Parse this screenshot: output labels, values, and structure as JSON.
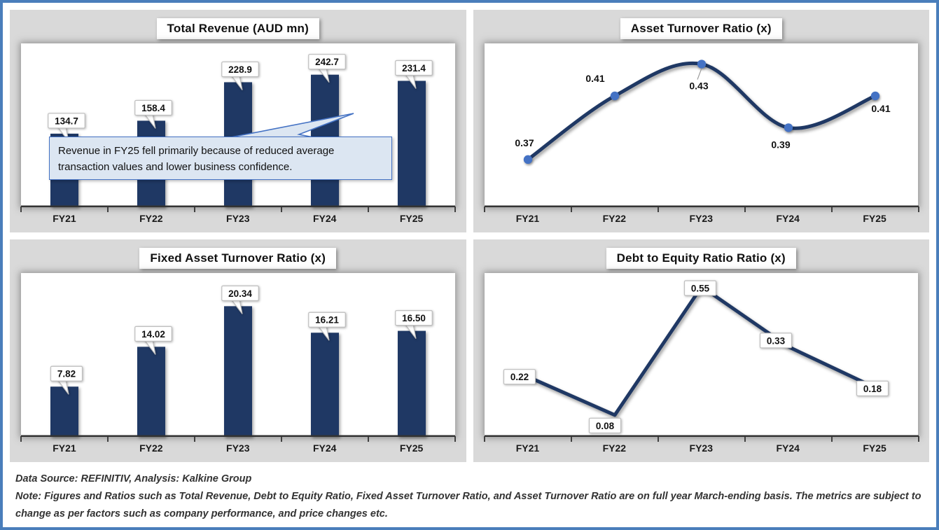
{
  "style": {
    "frame_border": "#4A7EBB",
    "panel_bg": "#D9D9D9",
    "bar_color": "#1F3864",
    "line_color": "#1F3864",
    "marker_color": "#4472C4",
    "axis_color": "#404040",
    "callout_fill": "#DCE6F2",
    "callout_border": "#4472C4",
    "label_box_border": "#BFBFBF"
  },
  "chart_data": [
    {
      "id": "total-revenue",
      "type": "bar",
      "title": "Total Revenue (AUD mn)",
      "categories": [
        "FY21",
        "FY22",
        "FY23",
        "FY24",
        "FY25"
      ],
      "values": [
        134.7,
        158.4,
        228.9,
        242.7,
        231.4
      ],
      "labels": [
        "134.7",
        "158.4",
        "228.9",
        "242.7",
        "231.4"
      ],
      "ylim": [
        0,
        300
      ],
      "grid": false,
      "legend": "none",
      "label_style": "callout",
      "annotation": {
        "text": "Revenue in FY25 fell primarily because of reduced average transaction values and lower business confidence.",
        "points_to": "FY25"
      }
    },
    {
      "id": "asset-turnover",
      "type": "line",
      "smooth": true,
      "markers": true,
      "title": "Asset Turnover Ratio (x)",
      "categories": [
        "FY21",
        "FY22",
        "FY23",
        "FY24",
        "FY25"
      ],
      "values": [
        0.37,
        0.41,
        0.43,
        0.39,
        0.41
      ],
      "labels": [
        "0.37",
        "0.41",
        "0.43",
        "0.39",
        "0.41"
      ],
      "ylim": [
        0.34,
        0.443
      ],
      "grid": false,
      "legend": "none",
      "label_style": "plain"
    },
    {
      "id": "fixed-asset-turnover",
      "type": "bar",
      "title": "Fixed Asset Turnover Ratio (x)",
      "categories": [
        "FY21",
        "FY22",
        "FY23",
        "FY24",
        "FY25"
      ],
      "values": [
        7.82,
        14.02,
        20.34,
        16.21,
        16.5
      ],
      "labels": [
        "7.82",
        "14.02",
        "20.34",
        "16.21",
        "16.50"
      ],
      "ylim": [
        0,
        25.5
      ],
      "grid": false,
      "legend": "none",
      "label_style": "callout"
    },
    {
      "id": "debt-to-equity",
      "type": "line",
      "smooth": false,
      "markers": false,
      "title": "Debt to Equity Ratio Ratio (x)",
      "categories": [
        "FY21",
        "FY22",
        "FY23",
        "FY24",
        "FY25"
      ],
      "values": [
        0.22,
        0.08,
        0.55,
        0.33,
        0.18
      ],
      "labels": [
        "0.22",
        "0.08",
        "0.55",
        "0.33",
        "0.18"
      ],
      "ylim": [
        0,
        0.6
      ],
      "grid": false,
      "legend": "none",
      "label_style": "box"
    }
  ],
  "footer": {
    "source_line": "Data Source: REFINITIV, Analysis: Kalkine Group",
    "note_line": "Note: Figures and Ratios such as Total Revenue, Debt to Equity Ratio, Fixed Asset Turnover Ratio, and Asset Turnover Ratio are on full year March-ending basis. The metrics are subject to change as per factors such as company performance, and price changes etc."
  }
}
